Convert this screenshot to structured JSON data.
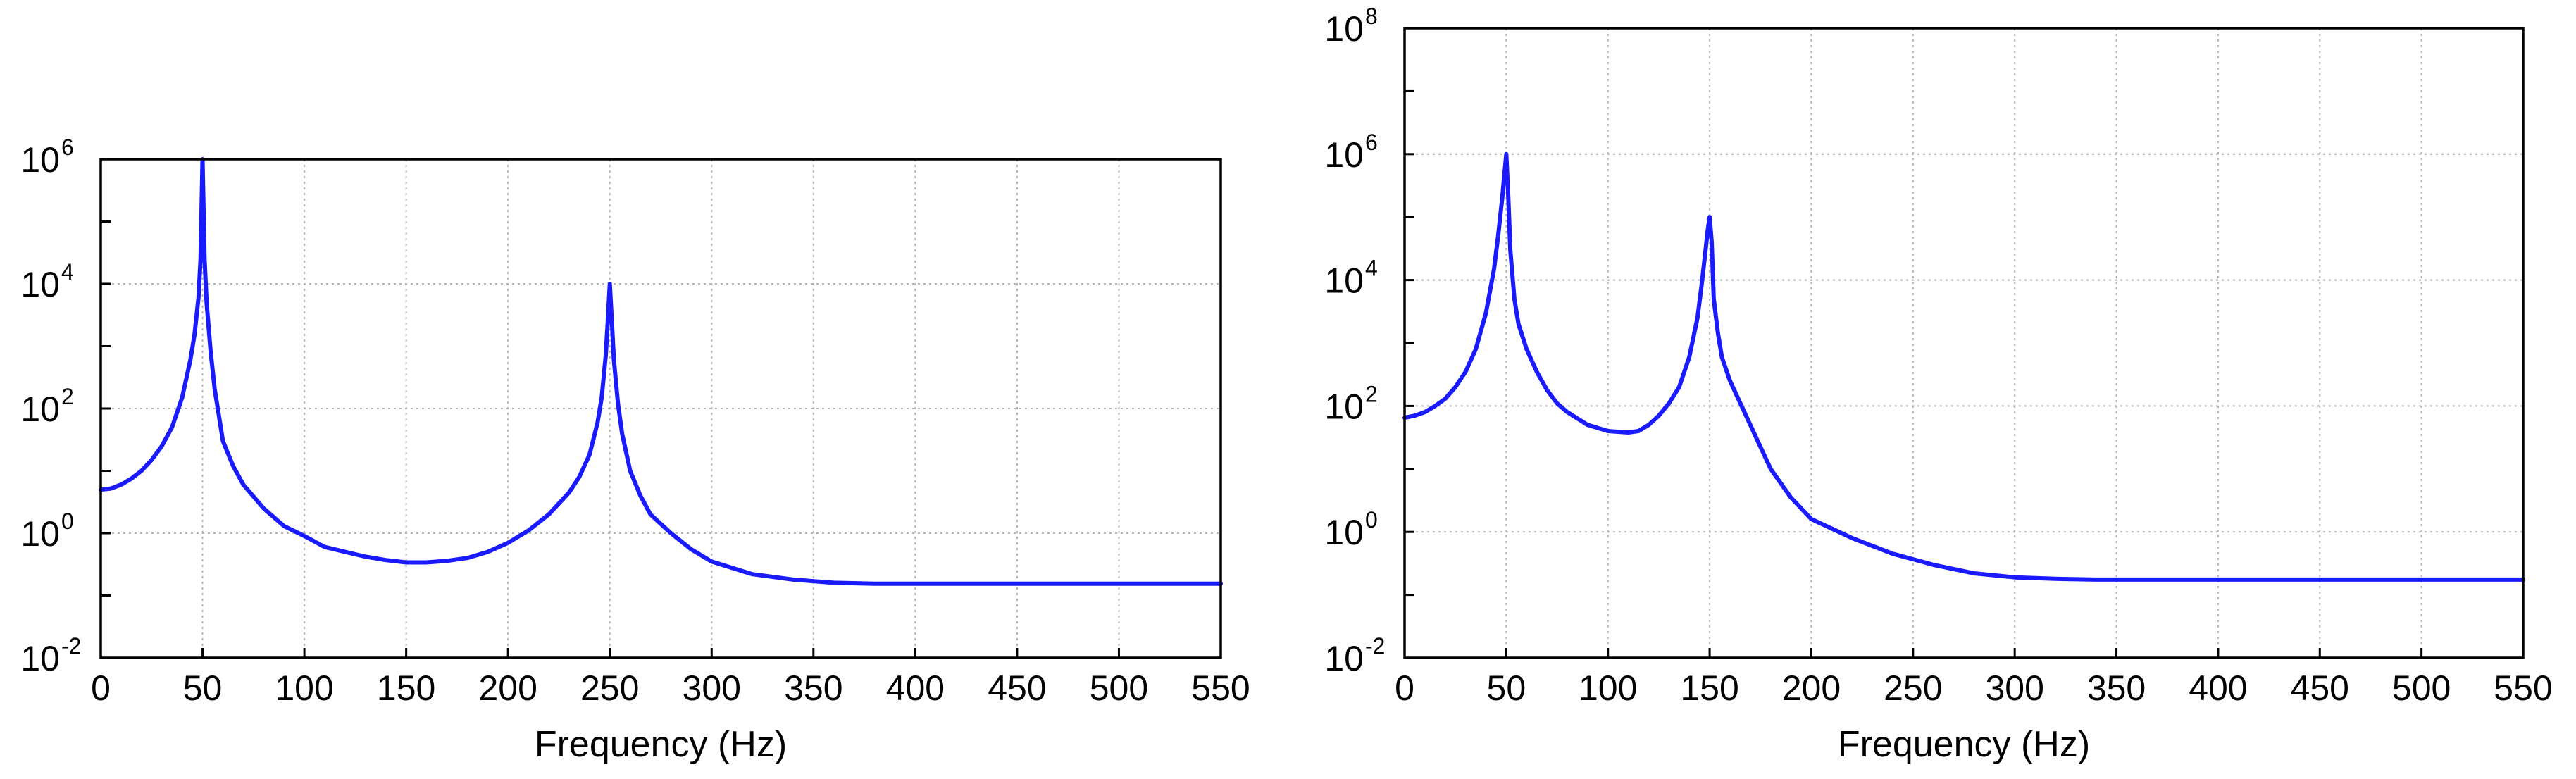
{
  "chart_data": [
    {
      "type": "line",
      "xlabel": "Frequency (Hz)",
      "ylabel": "",
      "xlim": [
        0,
        550
      ],
      "ylim": [
        0.01,
        1000000
      ],
      "yscale": "log",
      "grid": true,
      "xticks": [
        "0",
        "50",
        "100",
        "150",
        "200",
        "250",
        "300",
        "350",
        "400",
        "450",
        "500",
        "550"
      ],
      "yticks": [
        {
          "base": "10",
          "exp": "-2",
          "value": 0.01
        },
        {
          "base": "10",
          "exp": "0",
          "value": 1
        },
        {
          "base": "10",
          "exp": "2",
          "value": 100
        },
        {
          "base": "10",
          "exp": "4",
          "value": 10000
        },
        {
          "base": "10",
          "exp": "6",
          "value": 1000000
        }
      ],
      "series": [
        {
          "color": "#1a1aff",
          "x": [
            0,
            5,
            10,
            15,
            20,
            25,
            30,
            35,
            40,
            44,
            46,
            48,
            49,
            50,
            51,
            52,
            54,
            56,
            60,
            65,
            70,
            80,
            90,
            100,
            110,
            120,
            130,
            140,
            150,
            160,
            170,
            180,
            190,
            200,
            210,
            220,
            230,
            235,
            240,
            244,
            246,
            248,
            249,
            250,
            251,
            252,
            254,
            256,
            260,
            265,
            270,
            280,
            290,
            300,
            320,
            340,
            360,
            380,
            400,
            450,
            500,
            550
          ],
          "y": [
            5,
            5.2,
            6,
            7.5,
            10,
            15,
            25,
            50,
            150,
            600,
            1500,
            6000,
            25000,
            1000000,
            25000,
            5000,
            800,
            200,
            30,
            12,
            6,
            2.5,
            1.3,
            0.9,
            0.6,
            0.5,
            0.42,
            0.37,
            0.34,
            0.34,
            0.36,
            0.4,
            0.5,
            0.7,
            1.1,
            2,
            4.5,
            8,
            18,
            60,
            150,
            700,
            2500,
            10000,
            2500,
            600,
            120,
            40,
            10,
            4,
            2,
            1,
            0.55,
            0.35,
            0.22,
            0.18,
            0.16,
            0.155,
            0.155,
            0.155,
            0.155,
            0.155
          ]
        }
      ]
    },
    {
      "type": "line",
      "xlabel": "Frequency (Hz)",
      "ylabel": "",
      "xlim": [
        0,
        550
      ],
      "ylim": [
        0.01,
        100000000
      ],
      "yscale": "log",
      "grid": true,
      "xticks": [
        "0",
        "50",
        "100",
        "150",
        "200",
        "250",
        "300",
        "350",
        "400",
        "450",
        "500",
        "550"
      ],
      "yticks": [
        {
          "base": "10",
          "exp": "-2",
          "value": 0.01
        },
        {
          "base": "10",
          "exp": "0",
          "value": 1
        },
        {
          "base": "10",
          "exp": "2",
          "value": 100
        },
        {
          "base": "10",
          "exp": "4",
          "value": 10000
        },
        {
          "base": "10",
          "exp": "6",
          "value": 1000000
        },
        {
          "base": "10",
          "exp": "8",
          "value": 100000000
        }
      ],
      "series": [
        {
          "color": "#1a1aff",
          "x": [
            0,
            5,
            10,
            15,
            20,
            25,
            30,
            35,
            40,
            44,
            46,
            48,
            49,
            50,
            51,
            52,
            54,
            56,
            60,
            65,
            70,
            75,
            80,
            90,
            100,
            110,
            115,
            120,
            125,
            130,
            135,
            140,
            144,
            146,
            148,
            149,
            150,
            151,
            152,
            154,
            156,
            160,
            170,
            180,
            190,
            200,
            220,
            240,
            260,
            280,
            300,
            320,
            340,
            400,
            450,
            500,
            550
          ],
          "y": [
            65,
            70,
            80,
            100,
            130,
            200,
            350,
            800,
            3000,
            15000,
            50000,
            200000,
            450000,
            1000000,
            200000,
            30000,
            5000,
            2000,
            800,
            350,
            180,
            110,
            80,
            50,
            40,
            38,
            40,
            50,
            70,
            110,
            200,
            600,
            2500,
            8000,
            30000,
            60000,
            100000,
            40000,
            5000,
            1500,
            600,
            250,
            50,
            10,
            3.5,
            1.6,
            0.8,
            0.45,
            0.3,
            0.22,
            0.19,
            0.18,
            0.175,
            0.175,
            0.175,
            0.175,
            0.175
          ]
        }
      ]
    }
  ],
  "layout_hint": "two panels side by side"
}
